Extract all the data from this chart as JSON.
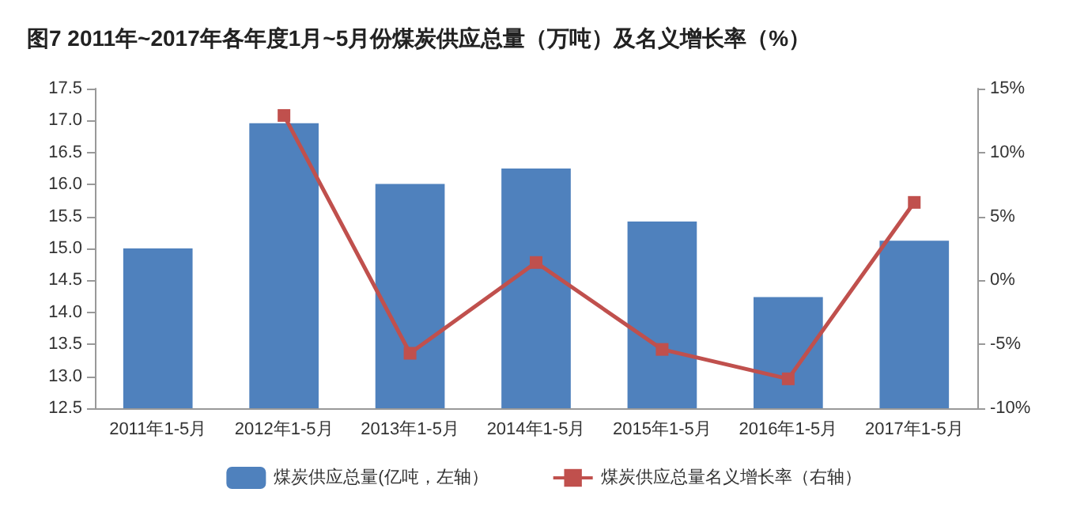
{
  "chart_data": {
    "type": "bar",
    "title": "图7 2011年~2017年各年度1月~5月份煤炭供应总量（万吨）及名义增长率（%）",
    "categories": [
      "2011年1-5月",
      "2012年1-5月",
      "2013年1-5月",
      "2014年1-5月",
      "2015年1-5月",
      "2016年1-5月",
      "2017年1-5月"
    ],
    "series": [
      {
        "name": "煤炭供应总量(亿吨，左轴）",
        "color": "#4f81bd",
        "values": [
          15.0,
          16.96,
          16.01,
          16.25,
          15.42,
          14.24,
          15.12
        ]
      },
      {
        "name": "煤炭供应总量名义增长率（右轴）",
        "type": "line",
        "axis": "y2",
        "color": "#c0504d",
        "values": [
          null,
          12.9,
          -5.7,
          1.4,
          -5.4,
          -7.7,
          6.1
        ]
      }
    ],
    "ylim": [
      12.5,
      17.5
    ],
    "yticks": [
      {
        "value": 12.5,
        "label": "12.5"
      },
      {
        "value": 13,
        "label": "13.0"
      },
      {
        "value": 13.5,
        "label": "13.5"
      },
      {
        "value": 14,
        "label": "14.0"
      },
      {
        "value": 14.5,
        "label": "14.5"
      },
      {
        "value": 15,
        "label": "15.0"
      },
      {
        "value": 15.5,
        "label": "15.5"
      },
      {
        "value": 16,
        "label": "16.0"
      },
      {
        "value": 16.5,
        "label": "16.5"
      },
      {
        "value": 17,
        "label": "17.0"
      },
      {
        "value": 17.5,
        "label": "17.5"
      }
    ],
    "y2lim": [
      -10,
      15
    ],
    "y2ticks": [
      {
        "value": -10,
        "label": "-10%"
      },
      {
        "value": -5,
        "label": "-5%"
      },
      {
        "value": 0,
        "label": "0%"
      },
      {
        "value": 5,
        "label": "5%"
      },
      {
        "value": 10,
        "label": "10%"
      },
      {
        "value": 15,
        "label": "15%"
      }
    ],
    "grid": false,
    "legend": "bottom",
    "marker": "square",
    "line_style": "solid"
  }
}
